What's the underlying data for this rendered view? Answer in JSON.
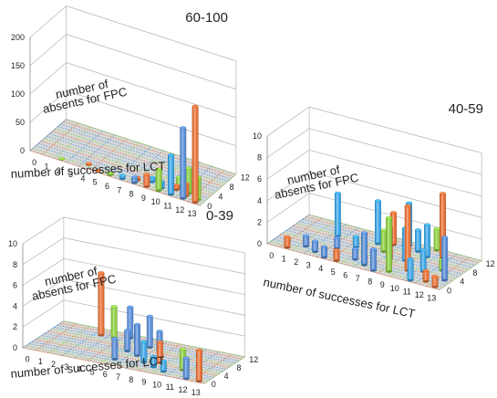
{
  "chart_data": [
    {
      "type": "bar3d",
      "panel_label": "60-100",
      "zlabel_lines": [
        "number of",
        "absents for FPC"
      ],
      "xlabel": "number of successes for LCT",
      "x_ticks": [
        "0",
        "1",
        "2",
        "3",
        "4",
        "5",
        "6",
        "7",
        "8",
        "9",
        "10",
        "11",
        "12",
        "13"
      ],
      "y_ticks": [
        "0",
        "4",
        "8",
        "12"
      ],
      "z_ticks": [
        "0",
        "50",
        "100",
        "150",
        "200"
      ],
      "zlim": [
        0,
        200
      ],
      "bars": [
        {
          "x": 2,
          "y": 0,
          "v": 1
        },
        {
          "x": 4,
          "y": 1,
          "v": 2
        },
        {
          "x": 5,
          "y": 0,
          "v": 1
        },
        {
          "x": 6,
          "y": 0,
          "v": 3
        },
        {
          "x": 7,
          "y": 0,
          "v": 6
        },
        {
          "x": 8,
          "y": 1,
          "v": 5
        },
        {
          "x": 8,
          "y": 0,
          "v": 10
        },
        {
          "x": 9,
          "y": 2,
          "v": 8
        },
        {
          "x": 9,
          "y": 0,
          "v": 22
        },
        {
          "x": 10,
          "y": 1,
          "v": 12
        },
        {
          "x": 10,
          "y": 0,
          "v": 38
        },
        {
          "x": 11,
          "y": 3,
          "v": 18
        },
        {
          "x": 11,
          "y": 2,
          "v": 8
        },
        {
          "x": 11,
          "y": 0,
          "v": 70
        },
        {
          "x": 12,
          "y": 2,
          "v": 45
        },
        {
          "x": 12,
          "y": 1,
          "v": 22
        },
        {
          "x": 12,
          "y": 0,
          "v": 125
        },
        {
          "x": 13,
          "y": 1,
          "v": 40
        },
        {
          "x": 13,
          "y": 0,
          "v": 170
        }
      ]
    },
    {
      "type": "bar3d",
      "panel_label": "40-59",
      "zlabel_lines": [
        "number of",
        "absents for FPC"
      ],
      "xlabel": "number of successes for LCT",
      "x_ticks": [
        "0",
        "1",
        "2",
        "3",
        "4",
        "5",
        "6",
        "7",
        "8",
        "9",
        "10",
        "11",
        "12",
        "13"
      ],
      "y_ticks": [
        "0",
        "4",
        "8",
        "12"
      ],
      "z_ticks": [
        "0",
        "2",
        "4",
        "6",
        "8",
        "10"
      ],
      "zlim": [
        0,
        10
      ],
      "bars": [
        {
          "x": 1,
          "y": 0,
          "v": 1
        },
        {
          "x": 2,
          "y": 2,
          "v": 1
        },
        {
          "x": 3,
          "y": 1,
          "v": 1
        },
        {
          "x": 3,
          "y": 8,
          "v": 4
        },
        {
          "x": 4,
          "y": 4,
          "v": 1
        },
        {
          "x": 4,
          "y": 0,
          "v": 1
        },
        {
          "x": 5,
          "y": 6,
          "v": 1
        },
        {
          "x": 5,
          "y": 0,
          "v": 1
        },
        {
          "x": 6,
          "y": 9,
          "v": 4
        },
        {
          "x": 6,
          "y": 2,
          "v": 1
        },
        {
          "x": 7,
          "y": 10,
          "v": 3
        },
        {
          "x": 7,
          "y": 7,
          "v": 2
        },
        {
          "x": 7,
          "y": 1,
          "v": 3
        },
        {
          "x": 8,
          "y": 11,
          "v": 4
        },
        {
          "x": 8,
          "y": 5,
          "v": 3
        },
        {
          "x": 8,
          "y": 0,
          "v": 2
        },
        {
          "x": 9,
          "y": 10,
          "v": 2
        },
        {
          "x": 9,
          "y": 6,
          "v": 3
        },
        {
          "x": 9,
          "y": 1,
          "v": 5
        },
        {
          "x": 10,
          "y": 12,
          "v": 2
        },
        {
          "x": 10,
          "y": 9,
          "v": 3
        },
        {
          "x": 10,
          "y": 3,
          "v": 6
        },
        {
          "x": 11,
          "y": 10,
          "v": 6
        },
        {
          "x": 11,
          "y": 4,
          "v": 2
        },
        {
          "x": 11,
          "y": 0,
          "v": 2
        },
        {
          "x": 12,
          "y": 6,
          "v": 1
        },
        {
          "x": 12,
          "y": 1,
          "v": 1
        },
        {
          "x": 13,
          "y": 3,
          "v": 4
        },
        {
          "x": 13,
          "y": 0,
          "v": 1
        }
      ]
    },
    {
      "type": "bar3d",
      "panel_label": "0-39",
      "zlabel_lines": [
        "number of",
        "absents for FPC"
      ],
      "xlabel": "number of successes for LCT",
      "x_ticks": [
        "0",
        "1",
        "2",
        "3",
        "4",
        "5",
        "6",
        "7",
        "8",
        "9",
        "10",
        "11",
        "12",
        "13"
      ],
      "y_ticks": [
        "0",
        "4",
        "8",
        "12"
      ],
      "z_ticks": [
        "0",
        "2",
        "4",
        "6",
        "8",
        "10"
      ],
      "zlim": [
        0,
        10
      ],
      "bars": [
        {
          "x": 3,
          "y": 10,
          "v": 6
        },
        {
          "x": 4,
          "y": 10,
          "v": 3
        },
        {
          "x": 5,
          "y": 11,
          "v": 3
        },
        {
          "x": 6,
          "y": 6,
          "v": 2
        },
        {
          "x": 6,
          "y": 2,
          "v": 2
        },
        {
          "x": 7,
          "y": 9,
          "v": 3
        },
        {
          "x": 7,
          "y": 5,
          "v": 3
        },
        {
          "x": 8,
          "y": 3,
          "v": 2
        },
        {
          "x": 8,
          "y": 8,
          "v": 2
        },
        {
          "x": 9,
          "y": 4,
          "v": 2
        },
        {
          "x": 9,
          "y": 2,
          "v": 1
        },
        {
          "x": 10,
          "y": 1,
          "v": 1
        },
        {
          "x": 11,
          "y": 3,
          "v": 2
        },
        {
          "x": 12,
          "y": 0,
          "v": 2
        },
        {
          "x": 13,
          "y": 0,
          "v": 3
        }
      ]
    }
  ],
  "colors": {
    "palette": [
      "#5b8fd6",
      "#e8733a",
      "#8fcf45",
      "#3fa7e6"
    ],
    "axis": "#888888",
    "grid": "#bbbbbb",
    "text": "#222222"
  }
}
